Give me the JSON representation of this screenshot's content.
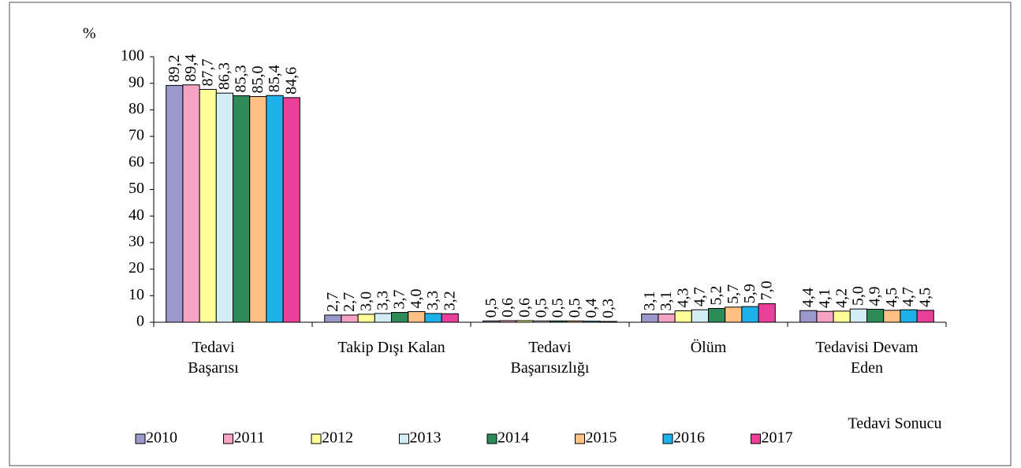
{
  "chart_data": {
    "type": "bar",
    "y_label": "%",
    "x_label": "Tedavi Sonucu",
    "categories": [
      "Tedavi\nBaşarısı",
      "Takip Dışı Kalan",
      "Tedavi\nBaşarısızlığı",
      "Ölüm",
      "Tedavisi Devam\nEden"
    ],
    "ylim": [
      0,
      100
    ],
    "yticks": [
      0,
      10,
      20,
      30,
      40,
      50,
      60,
      70,
      80,
      90,
      100
    ],
    "legend": "bottom",
    "series": [
      {
        "name": "2010",
        "color": "#9a99cc",
        "values": [
          89.2,
          2.7,
          0.5,
          3.1,
          4.4
        ],
        "value_labels": [
          "89,2",
          "2,7",
          "0,5",
          "3,1",
          "4,4"
        ]
      },
      {
        "name": "2011",
        "color": "#f6a3c4",
        "values": [
          89.4,
          2.7,
          0.6,
          3.1,
          4.1
        ],
        "value_labels": [
          "89,4",
          "2,7",
          "0,6",
          "3,1",
          "4,1"
        ]
      },
      {
        "name": "2012",
        "color": "#ffff99",
        "values": [
          87.7,
          3.0,
          0.6,
          4.3,
          4.2
        ],
        "value_labels": [
          "87,7",
          "3,0",
          "0,6",
          "4,3",
          "4,2"
        ]
      },
      {
        "name": "2013",
        "color": "#d3edf5",
        "values": [
          86.3,
          3.3,
          0.5,
          4.7,
          5.0
        ],
        "value_labels": [
          "86,3",
          "3,3",
          "0,5",
          "4,7",
          "5,0"
        ]
      },
      {
        "name": "2014",
        "color": "#2e8b57",
        "values": [
          85.3,
          3.7,
          0.5,
          5.2,
          4.9
        ],
        "value_labels": [
          "85,3",
          "3,7",
          "0,5",
          "5,2",
          "4,9"
        ]
      },
      {
        "name": "2015",
        "color": "#ffc183",
        "values": [
          85.0,
          4.0,
          0.5,
          5.7,
          4.5
        ],
        "value_labels": [
          "85,0",
          "4,0",
          "0,5",
          "5,7",
          "4,5"
        ]
      },
      {
        "name": "2016",
        "color": "#1fb1ea",
        "values": [
          85.4,
          3.3,
          0.4,
          5.9,
          4.7
        ],
        "value_labels": [
          "85,4",
          "3,3",
          "0,4",
          "5,9",
          "4,7"
        ]
      },
      {
        "name": "2017",
        "color": "#e9419a",
        "values": [
          84.6,
          3.2,
          0.3,
          7.0,
          4.5
        ],
        "value_labels": [
          "84,6",
          "3,2",
          "0,3",
          "7,0",
          "4,5"
        ]
      }
    ]
  }
}
